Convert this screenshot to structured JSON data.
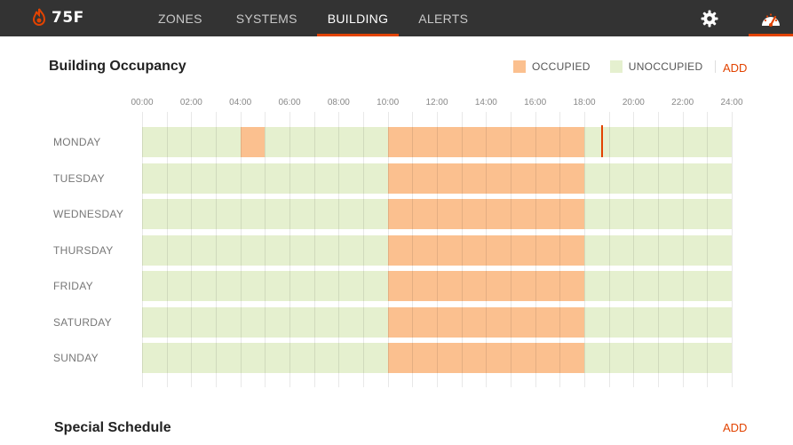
{
  "app": {
    "logo_text": "75F"
  },
  "nav": {
    "items": [
      {
        "label": "ZONES",
        "active": false
      },
      {
        "label": "SYSTEMS",
        "active": false
      },
      {
        "label": "BUILDING",
        "active": true
      },
      {
        "label": "ALERTS",
        "active": false
      }
    ]
  },
  "icons": {
    "settings": "gear-icon",
    "dashboard": "gauge-icon",
    "logo": "flame-logo-icon"
  },
  "occupancy": {
    "title": "Building Occupancy",
    "legend": {
      "occupied": "OCCUPIED",
      "unoccupied": "UNOCCUPIED"
    },
    "add_label": "ADD",
    "colors": {
      "occupied": "#fbc08f",
      "unoccupied": "#e5f0cf",
      "accent": "#e24301"
    },
    "hour_ticks": [
      "00:00",
      "02:00",
      "04:00",
      "06:00",
      "08:00",
      "10:00",
      "12:00",
      "14:00",
      "16:00",
      "18:00",
      "20:00",
      "22:00",
      "24:00"
    ],
    "days": [
      {
        "label": "MONDAY",
        "occupied": [
          [
            4,
            5
          ],
          [
            10,
            18
          ]
        ],
        "marker_hour": 18.7
      },
      {
        "label": "TUESDAY",
        "occupied": [
          [
            10,
            18
          ]
        ]
      },
      {
        "label": "WEDNESDAY",
        "occupied": [
          [
            10,
            18
          ]
        ]
      },
      {
        "label": "THURSDAY",
        "occupied": [
          [
            10,
            18
          ]
        ]
      },
      {
        "label": "FRIDAY",
        "occupied": [
          [
            10,
            18
          ]
        ]
      },
      {
        "label": "SATURDAY",
        "occupied": [
          [
            10,
            18
          ]
        ]
      },
      {
        "label": "SUNDAY",
        "occupied": [
          [
            10,
            18
          ]
        ]
      }
    ]
  },
  "special_schedule": {
    "title": "Special Schedule",
    "add_label": "ADD"
  }
}
